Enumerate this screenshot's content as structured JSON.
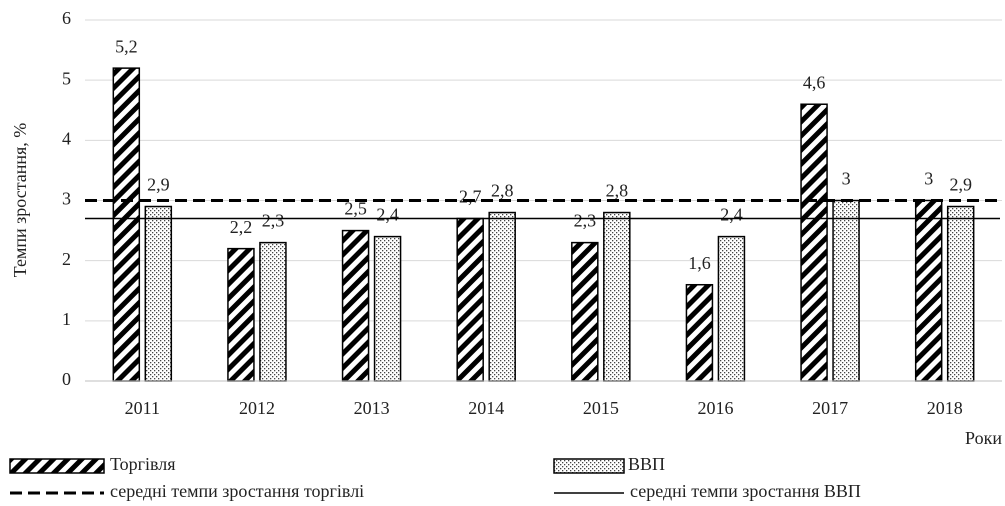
{
  "chart_data": {
    "type": "bar",
    "ylabel": "Темпи зростання, %",
    "xlabel": "Роки",
    "categories": [
      "2011",
      "2012",
      "2013",
      "2014",
      "2015",
      "2016",
      "2017",
      "2018"
    ],
    "series": [
      {
        "name": "Торгівля",
        "color": "#000000",
        "pattern": "hatch",
        "values": [
          5.2,
          2.2,
          2.5,
          2.7,
          2.3,
          1.6,
          4.6,
          3
        ],
        "value_labels": [
          "5,2",
          "2,2",
          "2,5",
          "2,7",
          "2,3",
          "1,6",
          "4,6",
          "3"
        ]
      },
      {
        "name": "ВВП",
        "color": "#000000",
        "pattern": "dots",
        "values": [
          2.9,
          2.3,
          2.4,
          2.8,
          2.8,
          2.4,
          3,
          2.9
        ],
        "value_labels": [
          "2,9",
          "2,3",
          "2,4",
          "2,8",
          "2,8",
          "2,4",
          "3",
          "2,9"
        ]
      }
    ],
    "reference_lines": [
      {
        "name": "середні темпи зростання торгівлі",
        "value": 3,
        "style": "dashed",
        "color": "#000000"
      },
      {
        "name": "середні темпи зростання ВВП",
        "value": 2.7,
        "style": "solid",
        "color": "#000000"
      }
    ],
    "ylim": [
      0,
      6
    ],
    "yticks": [
      0,
      1,
      2,
      3,
      4,
      5,
      6
    ],
    "grid": true
  }
}
